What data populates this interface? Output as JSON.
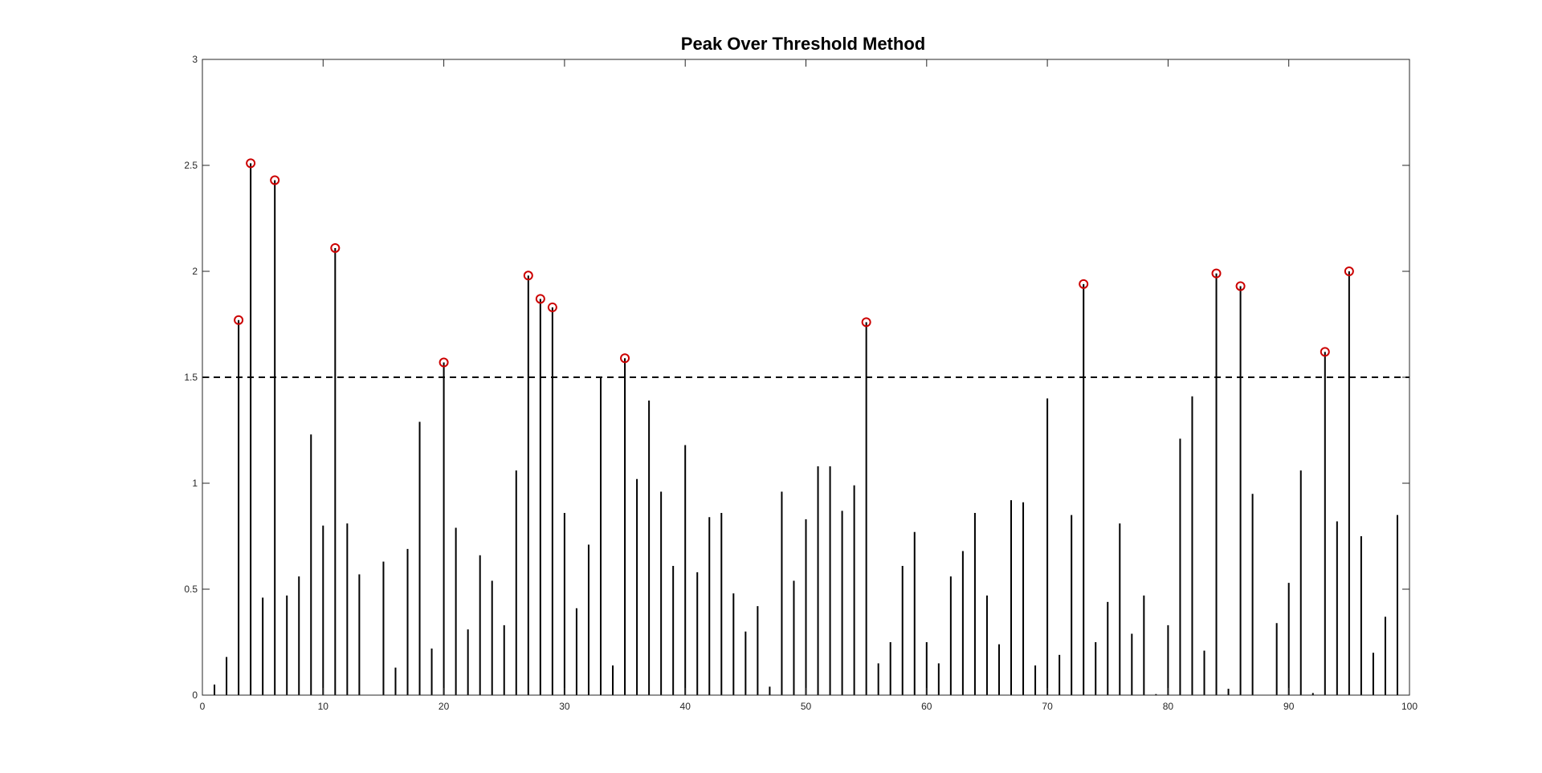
{
  "chart_data": {
    "type": "stem",
    "title": "Peak Over Threshold Method",
    "xlabel": "",
    "ylabel": "",
    "xlim": [
      0,
      100
    ],
    "ylim": [
      0,
      3
    ],
    "xticks": [
      0,
      10,
      20,
      30,
      40,
      50,
      60,
      70,
      80,
      90,
      100
    ],
    "yticks": [
      0,
      0.5,
      1,
      1.5,
      2,
      2.5,
      3
    ],
    "xtick_labels": [
      "0",
      "10",
      "20",
      "30",
      "40",
      "50",
      "60",
      "70",
      "80",
      "90",
      "100"
    ],
    "ytick_labels": [
      "0",
      "0.5",
      "1",
      "1.5",
      "2",
      "2.5",
      "3"
    ],
    "grid": false,
    "threshold": 1.5,
    "x": [
      1,
      2,
      3,
      4,
      5,
      6,
      7,
      8,
      9,
      10,
      11,
      12,
      13,
      14,
      15,
      16,
      17,
      18,
      19,
      20,
      21,
      22,
      23,
      24,
      25,
      26,
      27,
      28,
      29,
      30,
      31,
      32,
      33,
      34,
      35,
      36,
      37,
      38,
      39,
      40,
      41,
      42,
      43,
      44,
      45,
      46,
      47,
      48,
      49,
      50,
      51,
      52,
      53,
      54,
      55,
      56,
      57,
      58,
      59,
      60,
      61,
      62,
      63,
      64,
      65,
      66,
      67,
      68,
      69,
      70,
      71,
      72,
      73,
      74,
      75,
      76,
      77,
      78,
      79,
      80,
      81,
      82,
      83,
      84,
      85,
      86,
      87,
      88,
      89,
      90,
      91,
      92,
      93,
      94,
      95,
      96,
      97,
      98,
      99
    ],
    "values": [
      0.05,
      0.18,
      1.77,
      2.51,
      0.46,
      2.43,
      0.47,
      0.56,
      1.23,
      0.8,
      2.11,
      0.81,
      0.57,
      0.0,
      0.63,
      0.13,
      0.69,
      1.29,
      0.22,
      1.57,
      0.79,
      0.31,
      0.66,
      0.54,
      0.33,
      1.06,
      1.98,
      1.87,
      1.83,
      0.86,
      0.41,
      0.71,
      1.5,
      0.14,
      1.59,
      1.02,
      1.39,
      0.96,
      0.61,
      1.18,
      0.58,
      0.84,
      0.86,
      0.48,
      0.3,
      0.42,
      0.04,
      0.96,
      0.54,
      0.83,
      1.08,
      1.08,
      0.87,
      0.99,
      1.76,
      0.15,
      0.25,
      0.61,
      0.77,
      0.25,
      0.15,
      0.56,
      0.68,
      0.86,
      0.47,
      0.24,
      0.92,
      0.91,
      0.14,
      1.4,
      0.19,
      0.85,
      1.94,
      0.25,
      0.44,
      0.81,
      0.29,
      0.47,
      0.005,
      0.33,
      1.21,
      1.41,
      0.21,
      1.99,
      0.03,
      1.93,
      0.95,
      0.0,
      0.34,
      0.53,
      1.06,
      0.01,
      1.62,
      0.82,
      2.0,
      0.75,
      0.2,
      0.37,
      0.85
    ],
    "peaks": {
      "x": [
        3,
        4,
        6,
        11,
        20,
        27,
        28,
        29,
        35,
        55,
        73,
        84,
        86,
        93,
        95
      ],
      "y": [
        1.77,
        2.51,
        2.43,
        2.11,
        1.57,
        1.98,
        1.87,
        1.83,
        1.59,
        1.76,
        1.94,
        1.99,
        1.93,
        1.62,
        2.0
      ]
    },
    "colors": {
      "stem": "#000000",
      "peak_marker": "#cc0000",
      "threshold": "#000000",
      "axes": "#262626"
    }
  }
}
